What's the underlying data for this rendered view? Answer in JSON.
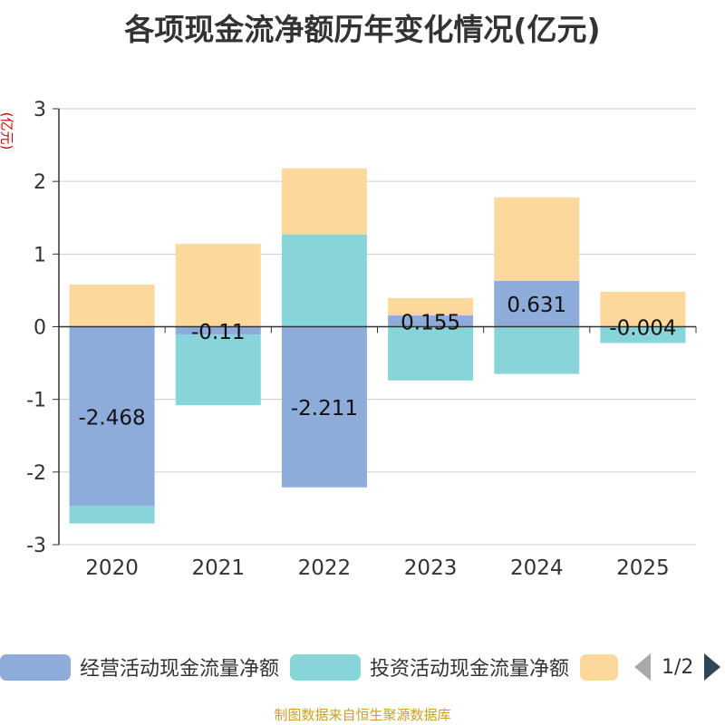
{
  "chart_data": {
    "type": "bar",
    "stacked": true,
    "title": "各项现金流净额历年变化情况(亿元)",
    "ylabel": "(亿元)",
    "categories": [
      "2020",
      "2021",
      "2022",
      "2023",
      "2024",
      "2025"
    ],
    "ylim": [
      -3,
      3
    ],
    "yticks": [
      "3",
      "2",
      "1",
      "0",
      "-1",
      "-2",
      "-3"
    ],
    "grid": true,
    "series": [
      {
        "name": "经营活动现金流量净额",
        "color": "#8eacd9",
        "values": [
          -2.468,
          -0.11,
          -2.211,
          0.155,
          0.631,
          -0.004
        ],
        "labels": [
          "-2.468",
          "-0.11",
          "-2.211",
          "0.155",
          "0.631",
          "-0.004"
        ]
      },
      {
        "name": "投资活动现金流量净额",
        "color": "#87d5d8",
        "values": [
          -0.24,
          -0.97,
          1.27,
          -0.74,
          -0.65,
          -0.22
        ]
      },
      {
        "name": "",
        "color": "#fdd89b",
        "values": [
          0.58,
          1.14,
          0.91,
          0.24,
          1.15,
          0.48
        ]
      }
    ],
    "legend": {
      "position": "bottom",
      "page": "1/2"
    }
  },
  "source": "制图数据来自恒生聚源数据库"
}
